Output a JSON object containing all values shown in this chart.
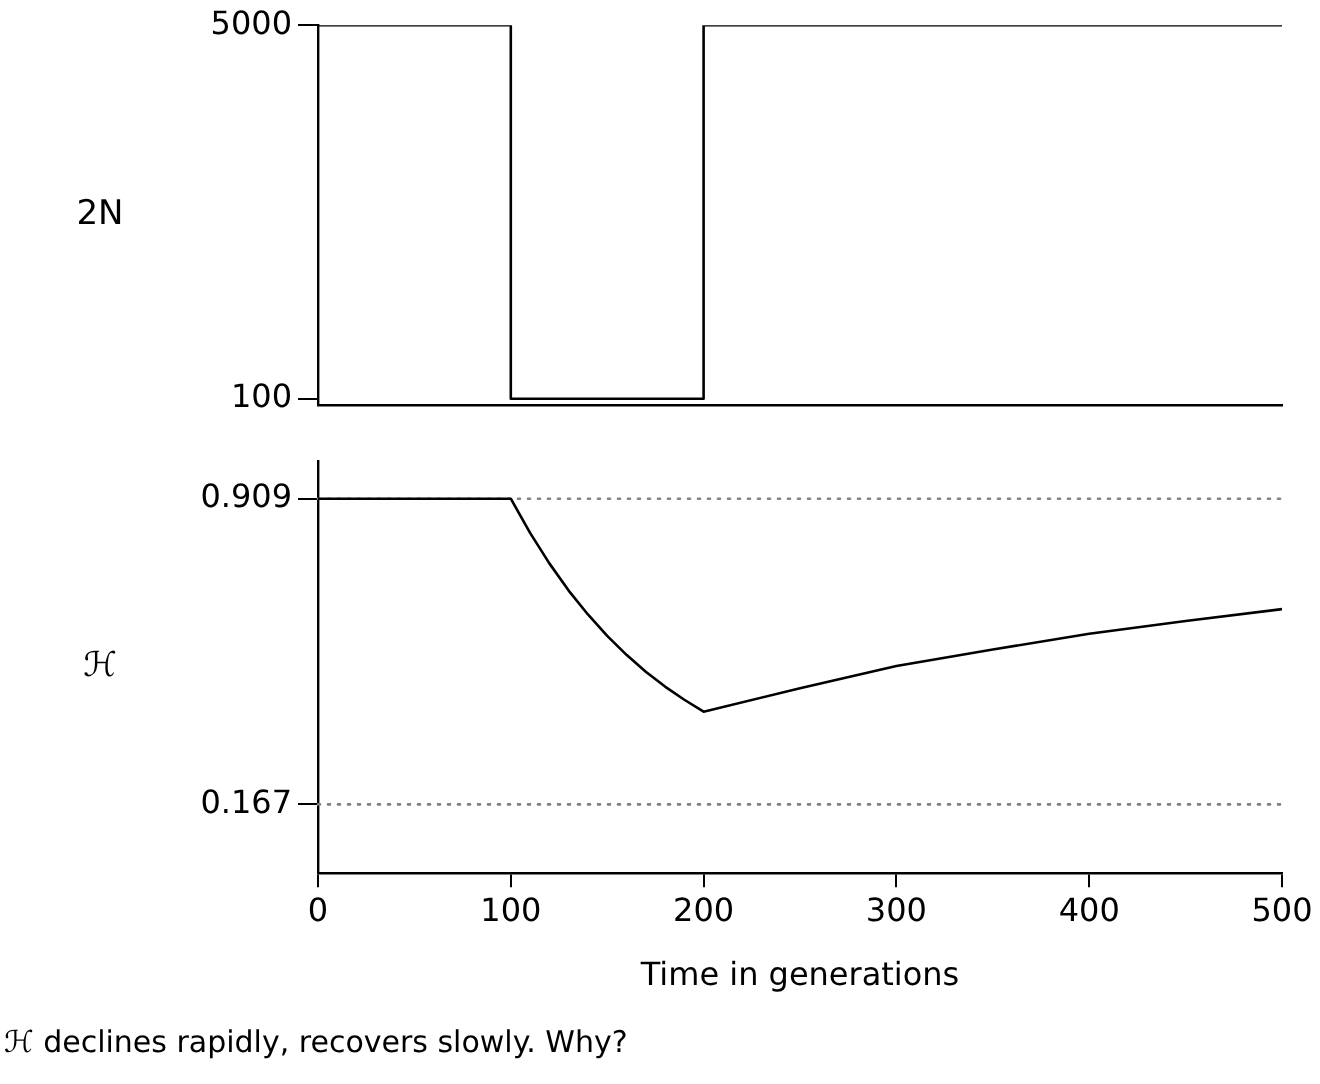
{
  "chart_data": [
    {
      "type": "step",
      "ylabel": "2N",
      "x": [
        0,
        100,
        200,
        500
      ],
      "series": [
        {
          "color": "#000000",
          "values": [
            5000,
            100,
            5000,
            5000
          ]
        }
      ],
      "xlim": [
        0,
        500
      ],
      "ylim": [
        20,
        5000
      ],
      "yticks": [
        100,
        5000
      ],
      "tick_labels": "y",
      "grid": false,
      "legend": false,
      "marker": "none"
    },
    {
      "type": "line",
      "ylabel": "ℋ",
      "xlabel": "Time in generations",
      "x": [
        0,
        100,
        110,
        120,
        130,
        140,
        150,
        160,
        170,
        180,
        190,
        200,
        250,
        300,
        350,
        400,
        450,
        500
      ],
      "series": [
        {
          "color": "#000000",
          "values": [
            0.909,
            0.909,
            0.826,
            0.752,
            0.686,
            0.628,
            0.576,
            0.53,
            0.489,
            0.453,
            0.421,
            0.392,
            0.449,
            0.503,
            0.543,
            0.581,
            0.612,
            0.641
          ]
        }
      ],
      "xlim": [
        0,
        500
      ],
      "xticks": [
        0,
        100,
        200,
        300,
        400,
        500
      ],
      "ylim": [
        0,
        1
      ],
      "yticks": [
        0.167,
        0.909
      ],
      "ref_lines": [
        {
          "axis": "y",
          "value": 0.909,
          "color": "#808080",
          "line_style": "dotted"
        },
        {
          "axis": "y",
          "value": 0.167,
          "color": "#808080",
          "line_style": "dotted"
        }
      ],
      "annotations": [
        "ℋ declines rapidly, recovers slowly. Why?"
      ],
      "grid": false,
      "legend": false,
      "marker": "none"
    }
  ]
}
